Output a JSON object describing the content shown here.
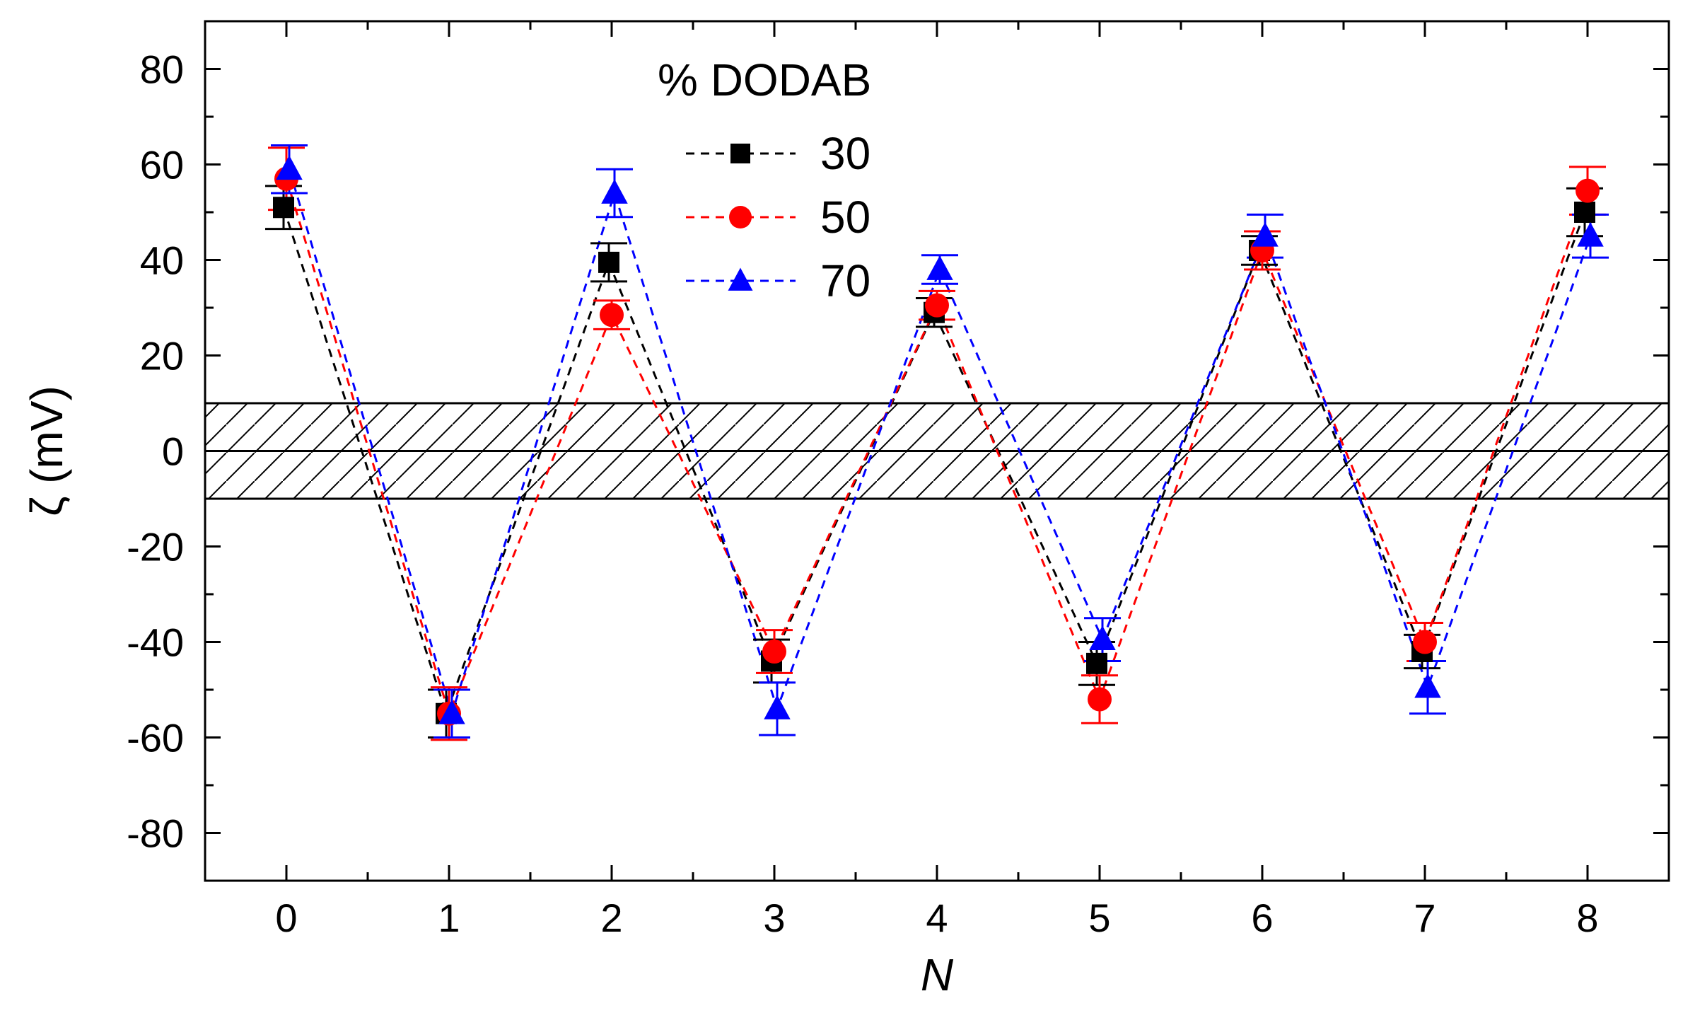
{
  "chart_data": {
    "type": "scatter",
    "xlabel": "N",
    "ylabel": "ζ (mV)",
    "xlim": [
      -0.5,
      8.5
    ],
    "ylim": [
      -90,
      90
    ],
    "x_ticks": [
      0,
      1,
      2,
      3,
      4,
      5,
      6,
      7,
      8
    ],
    "y_ticks": [
      80,
      60,
      40,
      20,
      0,
      -20,
      -40,
      -60,
      -80
    ],
    "legend": {
      "title": "% DODAB",
      "placement": "top-center"
    },
    "hatched_band": [
      -10,
      10
    ],
    "zero_line": true,
    "x": [
      0,
      1,
      2,
      3,
      4,
      5,
      6,
      7,
      8
    ],
    "series": [
      {
        "name": "30",
        "color": "#000000",
        "marker": "square",
        "values": [
          51,
          -55,
          39.5,
          -44,
          29,
          -44.5,
          42,
          -42,
          50
        ],
        "errors": [
          4.5,
          5,
          4,
          4.5,
          3,
          4.5,
          3,
          3.5,
          5
        ]
      },
      {
        "name": "50",
        "color": "#ff0000",
        "marker": "circle",
        "values": [
          57,
          -55,
          28.5,
          -42,
          30.5,
          -52,
          42,
          -40,
          54.5
        ],
        "errors": [
          6.5,
          5.5,
          3,
          4.5,
          3,
          5,
          4,
          4,
          5
        ]
      },
      {
        "name": "70",
        "color": "#0000ff",
        "marker": "triangle",
        "values": [
          59,
          -55,
          54,
          -54,
          38,
          -39.5,
          45,
          -49.5,
          45
        ],
        "errors": [
          5,
          5,
          5,
          5.5,
          3,
          4.5,
          4.5,
          5.5,
          4.5
        ]
      }
    ]
  }
}
